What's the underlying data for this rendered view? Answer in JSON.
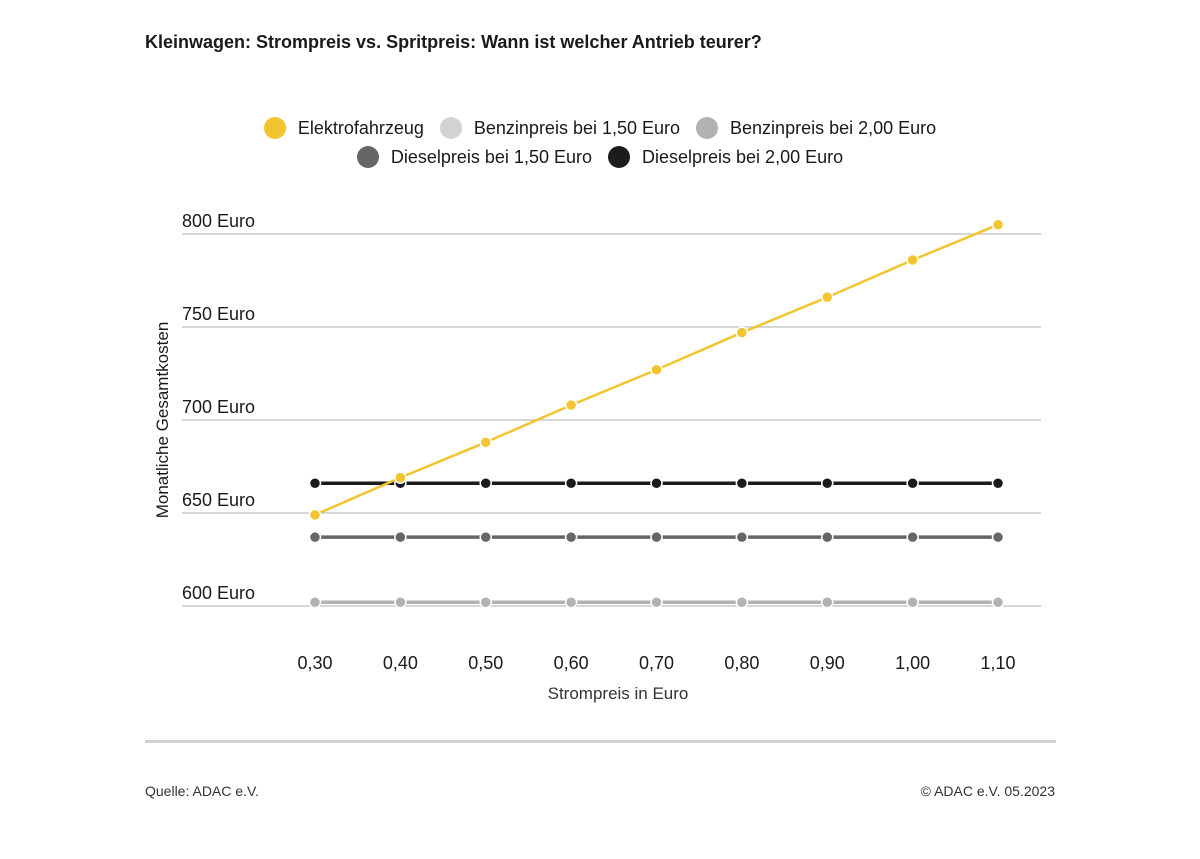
{
  "title": "Kleinwagen: Strompreis vs. Spritpreis: Wann ist welcher Antrieb teurer?",
  "footer": {
    "source": "Quelle: ADAC e.V.",
    "copyright": "© ADAC e.V. 05.2023"
  },
  "chart_data": {
    "type": "line",
    "title": "Kleinwagen: Strompreis vs. Spritpreis: Wann ist welcher Antrieb teurer?",
    "xlabel": "Strompreis in Euro",
    "ylabel": "Monatliche Gesamtkosten",
    "categories": [
      "0,30",
      "0,40",
      "0,50",
      "0,60",
      "0,70",
      "0,80",
      "0,90",
      "1,00",
      "1,10"
    ],
    "y_ticks": [
      {
        "value": 600,
        "label": "600 Euro"
      },
      {
        "value": 650,
        "label": "650 Euro"
      },
      {
        "value": 700,
        "label": "700 Euro"
      },
      {
        "value": 750,
        "label": "750 Euro"
      },
      {
        "value": 800,
        "label": "800 Euro"
      }
    ],
    "ylim": [
      595,
      810
    ],
    "grid": true,
    "legend_position": "top-center",
    "series": [
      {
        "name": "Elektrofahrzeug",
        "color": "#f2c530",
        "values": [
          649,
          669,
          688,
          708,
          727,
          747,
          766,
          786,
          805
        ]
      },
      {
        "name": "Benzinpreis bei 1,50 Euro",
        "color": "#d2d2d2",
        "values": [
          602,
          602,
          602,
          602,
          602,
          602,
          602,
          602,
          602
        ]
      },
      {
        "name": "Benzinpreis bei 2,00 Euro",
        "color": "#b2b2b2",
        "values": [
          602,
          602,
          602,
          602,
          602,
          602,
          602,
          602,
          602
        ]
      },
      {
        "name": "Dieselpreis bei 1,50 Euro",
        "color": "#666666",
        "values": [
          637,
          637,
          637,
          637,
          637,
          637,
          637,
          637,
          637
        ]
      },
      {
        "name": "Dieselpreis bei 2,00 Euro",
        "color": "#1c1c1c",
        "values": [
          666,
          666,
          666,
          666,
          666,
          666,
          666,
          666,
          666
        ]
      }
    ]
  }
}
